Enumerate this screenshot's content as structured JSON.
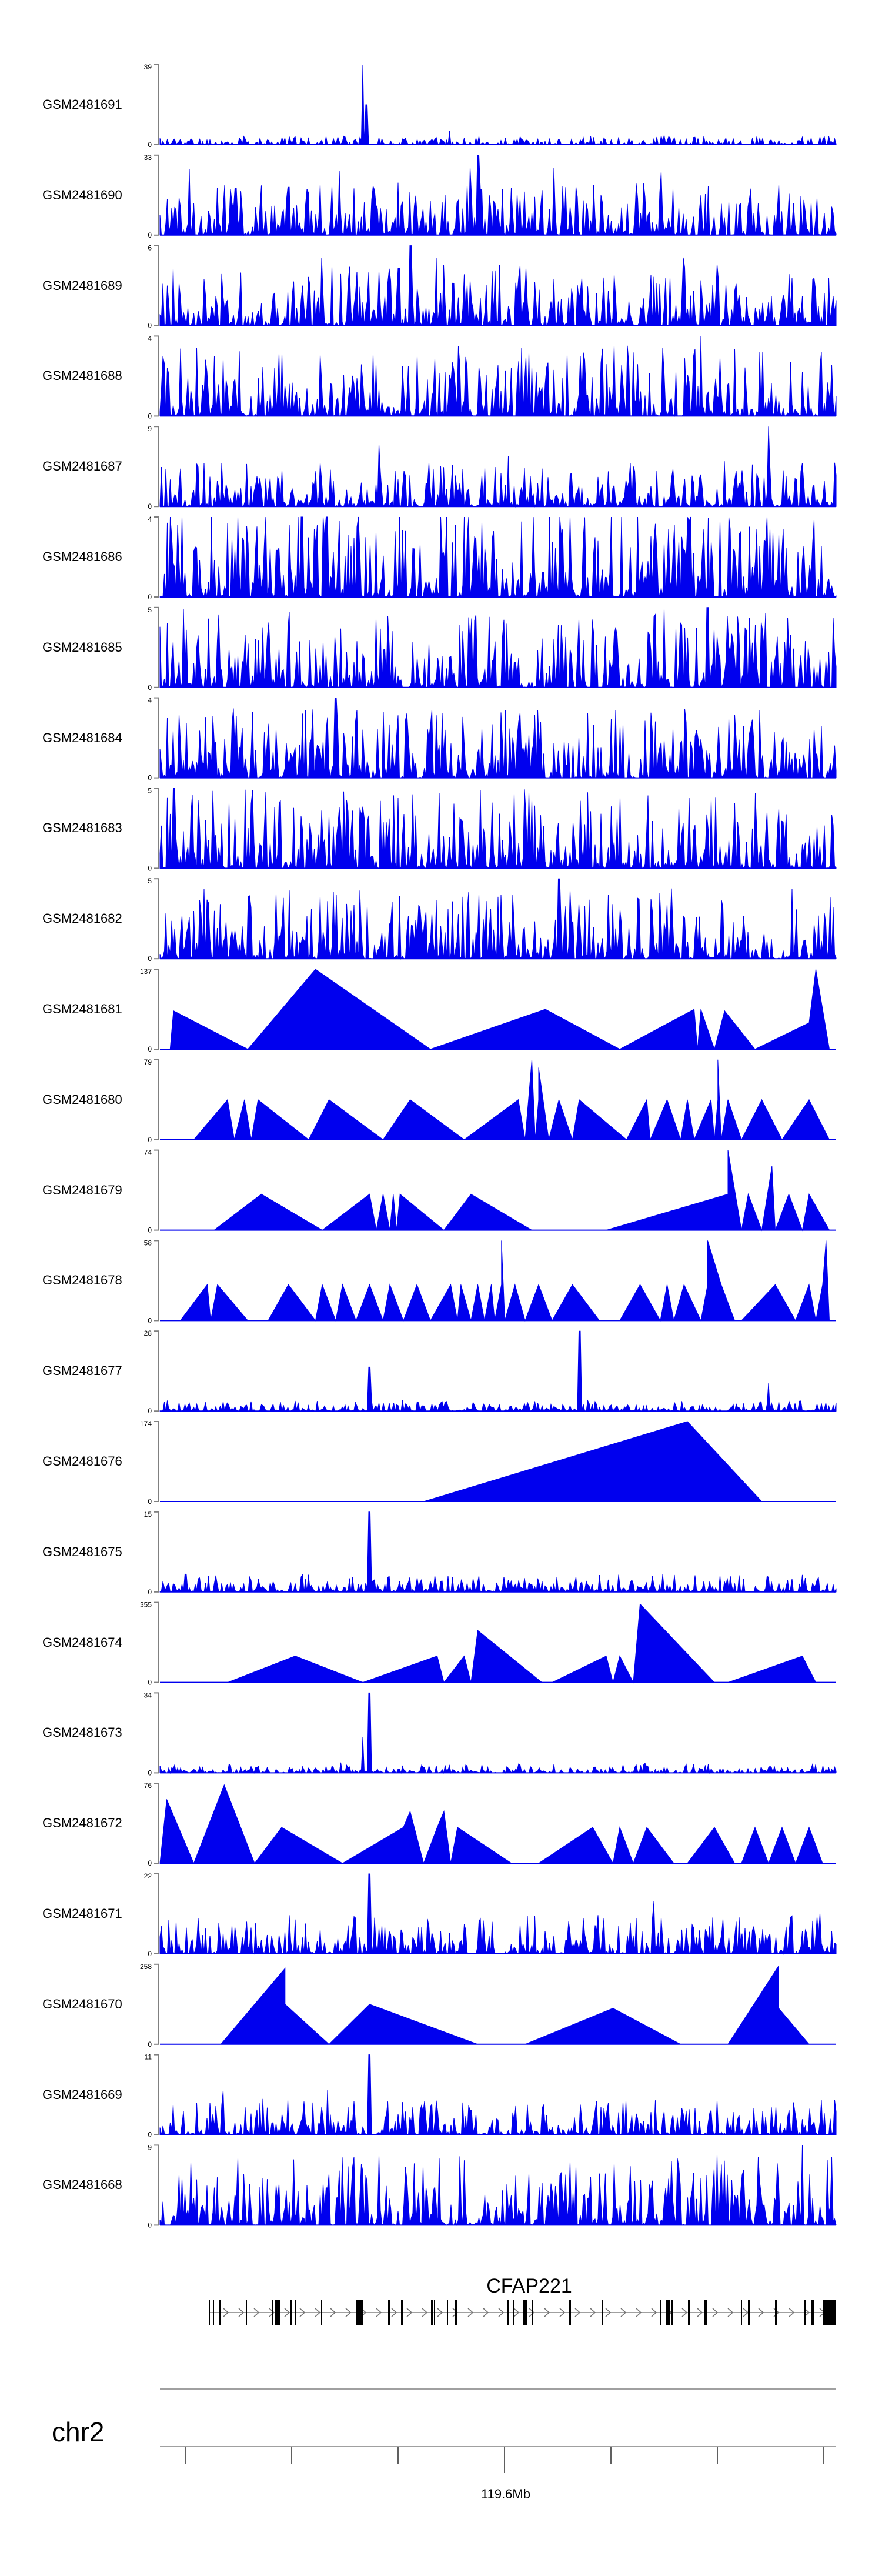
{
  "colors": {
    "signal": "#0000EE",
    "axis": "#808080",
    "text": "#000000",
    "exon": "#000000",
    "line": "#A0A0A0"
  },
  "chart_data": {
    "type": "area",
    "title": "",
    "genome_region": {
      "chromosome": "chr2",
      "x_tick_label": "119.6Mb",
      "gene": "CFAP221"
    },
    "tracks": [
      {
        "name": "GSM2481691",
        "ymax": "39",
        "ymin": "0",
        "style": "noise",
        "seed": 11,
        "base": 0.05,
        "spikes": [
          [
            0.3,
            1.0
          ],
          [
            0.305,
            0.5
          ]
        ]
      },
      {
        "name": "GSM2481690",
        "ymax": "33",
        "ymin": "0",
        "style": "mixed",
        "seed": 12,
        "base": 0.3,
        "spikes": [
          [
            0.47,
            1.0
          ],
          [
            0.19,
            0.6
          ]
        ]
      },
      {
        "name": "GSM2481689",
        "ymax": "6",
        "ymin": "0",
        "style": "noise",
        "seed": 13,
        "base": 0.35,
        "spikes": [
          [
            0.37,
            1.0
          ]
        ]
      },
      {
        "name": "GSM2481688",
        "ymax": "4",
        "ymin": "0",
        "style": "noise",
        "seed": 14,
        "base": 0.4,
        "spikes": [
          [
            0.8,
            1.0
          ]
        ]
      },
      {
        "name": "GSM2481687",
        "ymax": "9",
        "ymin": "0",
        "style": "noise",
        "seed": 15,
        "base": 0.25,
        "spikes": [
          [
            0.9,
            1.0
          ]
        ]
      },
      {
        "name": "GSM2481686",
        "ymax": "4",
        "ymin": "0",
        "style": "noise",
        "seed": 16,
        "base": 0.55,
        "spikes": [
          [
            0.21,
            1.0
          ]
        ]
      },
      {
        "name": "GSM2481685",
        "ymax": "5",
        "ymin": "0",
        "style": "noise",
        "seed": 17,
        "base": 0.45,
        "spikes": [
          [
            0.81,
            1.0
          ]
        ]
      },
      {
        "name": "GSM2481684",
        "ymax": "4",
        "ymin": "0",
        "style": "noise",
        "seed": 18,
        "base": 0.4,
        "spikes": [
          [
            0.26,
            1.0
          ]
        ]
      },
      {
        "name": "GSM2481683",
        "ymax": "5",
        "ymin": "0",
        "style": "noise",
        "seed": 19,
        "base": 0.45,
        "spikes": [
          [
            0.02,
            1.0
          ]
        ]
      },
      {
        "name": "GSM2481682",
        "ymax": "5",
        "ymin": "0",
        "style": "noise",
        "seed": 20,
        "base": 0.4,
        "spikes": [
          [
            0.59,
            1.0
          ]
        ]
      },
      {
        "name": "GSM2481681",
        "ymax": "137",
        "ymin": "0",
        "style": "triangles",
        "points": [
          [
            0.015,
            0
          ],
          [
            0.02,
            0.48
          ],
          [
            0.13,
            0
          ],
          [
            0.23,
            1.0
          ],
          [
            0.4,
            0
          ],
          [
            0.57,
            0.5
          ],
          [
            0.68,
            0
          ],
          [
            0.79,
            0.5
          ],
          [
            0.795,
            0
          ],
          [
            0.8,
            0.5
          ],
          [
            0.82,
            0
          ],
          [
            0.835,
            0.48
          ],
          [
            0.88,
            0
          ],
          [
            0.96,
            0.33
          ],
          [
            0.97,
            1.0
          ],
          [
            0.99,
            0
          ]
        ]
      },
      {
        "name": "GSM2481680",
        "ymax": "79",
        "ymin": "0",
        "style": "triangles",
        "points": [
          [
            0.05,
            0
          ],
          [
            0.1,
            0.5
          ],
          [
            0.11,
            0
          ],
          [
            0.125,
            0.5
          ],
          [
            0.135,
            0
          ],
          [
            0.145,
            0.5
          ],
          [
            0.22,
            0
          ],
          [
            0.25,
            0.5
          ],
          [
            0.33,
            0
          ],
          [
            0.37,
            0.5
          ],
          [
            0.45,
            0
          ],
          [
            0.53,
            0.5
          ],
          [
            0.54,
            0
          ],
          [
            0.545,
            0.5
          ],
          [
            0.55,
            1.0
          ],
          [
            0.555,
            0
          ],
          [
            0.56,
            0.5
          ],
          [
            0.56,
            0.9
          ],
          [
            0.575,
            0
          ],
          [
            0.59,
            0.5
          ],
          [
            0.61,
            0
          ],
          [
            0.62,
            0.5
          ],
          [
            0.69,
            0
          ],
          [
            0.72,
            0.5
          ],
          [
            0.725,
            0
          ],
          [
            0.75,
            0.5
          ],
          [
            0.77,
            0
          ],
          [
            0.78,
            0.5
          ],
          [
            0.79,
            0
          ],
          [
            0.815,
            0.5
          ],
          [
            0.82,
            0
          ],
          [
            0.825,
            0.5
          ],
          [
            0.825,
            1.0
          ],
          [
            0.83,
            0
          ],
          [
            0.84,
            0.5
          ],
          [
            0.86,
            0
          ],
          [
            0.89,
            0.5
          ],
          [
            0.92,
            0
          ],
          [
            0.96,
            0.5
          ],
          [
            0.99,
            0
          ]
        ]
      },
      {
        "name": "GSM2481679",
        "ymax": "74",
        "ymin": "0",
        "style": "triangles",
        "points": [
          [
            0.08,
            0
          ],
          [
            0.15,
            0.45
          ],
          [
            0.24,
            0
          ],
          [
            0.31,
            0.45
          ],
          [
            0.32,
            0
          ],
          [
            0.33,
            0.45
          ],
          [
            0.34,
            0
          ],
          [
            0.345,
            0.45
          ],
          [
            0.35,
            0
          ],
          [
            0.355,
            0.45
          ],
          [
            0.42,
            0
          ],
          [
            0.46,
            0.45
          ],
          [
            0.55,
            0
          ],
          [
            0.66,
            0
          ],
          [
            0.84,
            0.45
          ],
          [
            0.84,
            1.0
          ],
          [
            0.86,
            0
          ],
          [
            0.87,
            0.45
          ],
          [
            0.89,
            0
          ],
          [
            0.905,
            0.8
          ],
          [
            0.91,
            0
          ],
          [
            0.93,
            0.45
          ],
          [
            0.95,
            0
          ],
          [
            0.96,
            0.45
          ],
          [
            0.99,
            0
          ]
        ]
      },
      {
        "name": "GSM2481678",
        "ymax": "58",
        "ymin": "0",
        "style": "triangles",
        "points": [
          [
            0.03,
            0
          ],
          [
            0.07,
            0.45
          ],
          [
            0.075,
            0
          ],
          [
            0.085,
            0.45
          ],
          [
            0.13,
            0
          ],
          [
            0.16,
            0
          ],
          [
            0.19,
            0.45
          ],
          [
            0.23,
            0
          ],
          [
            0.24,
            0.45
          ],
          [
            0.26,
            0
          ],
          [
            0.27,
            0.45
          ],
          [
            0.29,
            0
          ],
          [
            0.31,
            0.45
          ],
          [
            0.33,
            0
          ],
          [
            0.34,
            0.45
          ],
          [
            0.36,
            0
          ],
          [
            0.38,
            0.45
          ],
          [
            0.4,
            0
          ],
          [
            0.43,
            0.45
          ],
          [
            0.44,
            0
          ],
          [
            0.445,
            0.45
          ],
          [
            0.46,
            0
          ],
          [
            0.47,
            0.45
          ],
          [
            0.48,
            0
          ],
          [
            0.49,
            0.45
          ],
          [
            0.495,
            0
          ],
          [
            0.505,
            0.45
          ],
          [
            0.505,
            1.0
          ],
          [
            0.51,
            0
          ],
          [
            0.525,
            0.45
          ],
          [
            0.54,
            0
          ],
          [
            0.56,
            0.45
          ],
          [
            0.58,
            0
          ],
          [
            0.61,
            0.45
          ],
          [
            0.65,
            0
          ],
          [
            0.68,
            0
          ],
          [
            0.71,
            0.45
          ],
          [
            0.74,
            0
          ],
          [
            0.75,
            0.45
          ],
          [
            0.76,
            0
          ],
          [
            0.775,
            0.45
          ],
          [
            0.8,
            0
          ],
          [
            0.81,
            0.45
          ],
          [
            0.81,
            1.0
          ],
          [
            0.83,
            0.45
          ],
          [
            0.85,
            0
          ],
          [
            0.86,
            0
          ],
          [
            0.91,
            0.45
          ],
          [
            0.94,
            0
          ],
          [
            0.96,
            0.45
          ],
          [
            0.97,
            0
          ],
          [
            0.98,
            0.45
          ],
          [
            0.985,
            1.0
          ],
          [
            0.99,
            0
          ]
        ]
      },
      {
        "name": "GSM2481677",
        "ymax": "28",
        "ymin": "0",
        "style": "noise",
        "seed": 21,
        "base": 0.06,
        "spikes": [
          [
            0.31,
            0.55
          ],
          [
            0.62,
            1.0
          ],
          [
            0.9,
            0.35
          ]
        ]
      },
      {
        "name": "GSM2481676",
        "ymax": "174",
        "ymin": "0",
        "style": "triangles",
        "points": [
          [
            0.39,
            0
          ],
          [
            0.78,
            1.0
          ],
          [
            0.89,
            0
          ]
        ]
      },
      {
        "name": "GSM2481675",
        "ymax": "15",
        "ymin": "0",
        "style": "noise",
        "seed": 22,
        "base": 0.1,
        "spikes": [
          [
            0.31,
            1.0
          ]
        ]
      },
      {
        "name": "GSM2481674",
        "ymax": "355",
        "ymin": "0",
        "style": "triangles",
        "points": [
          [
            0.1,
            0
          ],
          [
            0.2,
            0.33
          ],
          [
            0.3,
            0
          ],
          [
            0.41,
            0.33
          ],
          [
            0.42,
            0
          ],
          [
            0.45,
            0.33
          ],
          [
            0.46,
            0
          ],
          [
            0.47,
            0.65
          ],
          [
            0.565,
            0
          ],
          [
            0.58,
            0
          ],
          [
            0.66,
            0.33
          ],
          [
            0.67,
            0
          ],
          [
            0.68,
            0.33
          ],
          [
            0.7,
            0
          ],
          [
            0.71,
            0.98
          ],
          [
            0.82,
            0
          ],
          [
            0.84,
            0
          ],
          [
            0.95,
            0.33
          ],
          [
            0.97,
            0
          ]
        ]
      },
      {
        "name": "GSM2481673",
        "ymax": "34",
        "ymin": "0",
        "style": "noise",
        "seed": 23,
        "base": 0.05,
        "spikes": [
          [
            0.31,
            1.0
          ],
          [
            0.3,
            0.45
          ]
        ]
      },
      {
        "name": "GSM2481672",
        "ymax": "76",
        "ymin": "0",
        "style": "triangles",
        "points": [
          [
            0.0,
            0
          ],
          [
            0.01,
            0.8
          ],
          [
            0.05,
            0
          ],
          [
            0.095,
            0.98
          ],
          [
            0.14,
            0
          ],
          [
            0.18,
            0.45
          ],
          [
            0.27,
            0
          ],
          [
            0.36,
            0.45
          ],
          [
            0.37,
            0.65
          ],
          [
            0.39,
            0
          ],
          [
            0.41,
            0.45
          ],
          [
            0.42,
            0.65
          ],
          [
            0.43,
            0
          ],
          [
            0.44,
            0.45
          ],
          [
            0.52,
            0
          ],
          [
            0.56,
            0
          ],
          [
            0.64,
            0.45
          ],
          [
            0.67,
            0
          ],
          [
            0.68,
            0.45
          ],
          [
            0.7,
            0
          ],
          [
            0.72,
            0.45
          ],
          [
            0.76,
            0
          ],
          [
            0.78,
            0
          ],
          [
            0.82,
            0.45
          ],
          [
            0.85,
            0
          ],
          [
            0.86,
            0
          ],
          [
            0.88,
            0.45
          ],
          [
            0.9,
            0
          ],
          [
            0.92,
            0.45
          ],
          [
            0.94,
            0
          ],
          [
            0.96,
            0.45
          ],
          [
            0.98,
            0
          ]
        ]
      },
      {
        "name": "GSM2481671",
        "ymax": "22",
        "ymin": "0",
        "style": "noise",
        "seed": 24,
        "base": 0.22,
        "spikes": [
          [
            0.31,
            1.0
          ]
        ]
      },
      {
        "name": "GSM2481670",
        "ymax": "258",
        "ymin": "0",
        "style": "triangles",
        "points": [
          [
            0.09,
            0
          ],
          [
            0.185,
            0.95
          ],
          [
            0.185,
            0.5
          ],
          [
            0.25,
            0
          ],
          [
            0.31,
            0.5
          ],
          [
            0.47,
            0
          ],
          [
            0.54,
            0
          ],
          [
            0.67,
            0.45
          ],
          [
            0.77,
            0
          ],
          [
            0.84,
            0
          ],
          [
            0.915,
            0.98
          ],
          [
            0.915,
            0.45
          ],
          [
            0.96,
            0
          ]
        ]
      },
      {
        "name": "GSM2481669",
        "ymax": "11",
        "ymin": "0",
        "style": "noise",
        "seed": 25,
        "base": 0.2,
        "spikes": [
          [
            0.31,
            1.0
          ]
        ]
      },
      {
        "name": "GSM2481668",
        "ymax": "9",
        "ymin": "0",
        "style": "noise",
        "seed": 26,
        "base": 0.4,
        "spikes": [
          [
            0.95,
            1.0
          ]
        ]
      }
    ]
  }
}
